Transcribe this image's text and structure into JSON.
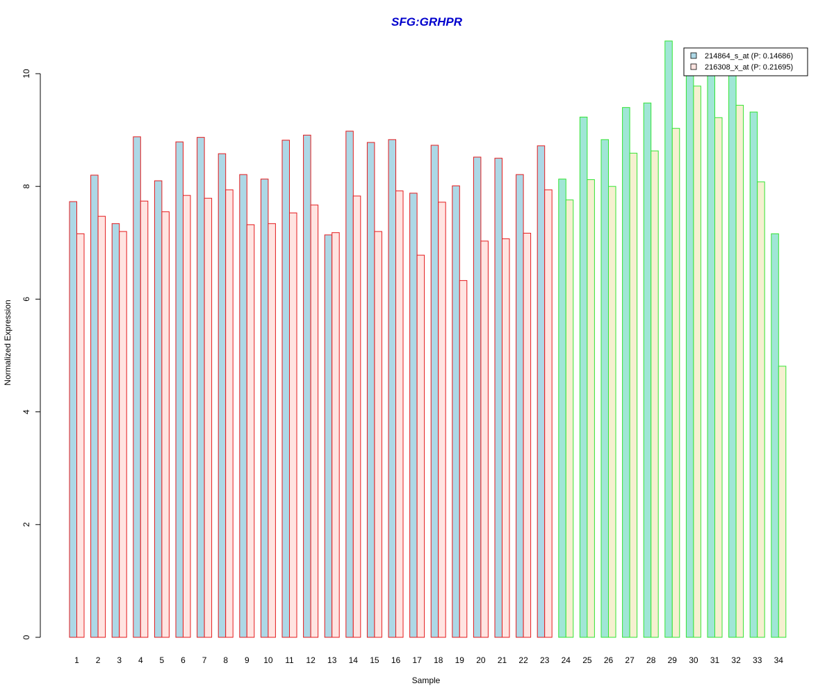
{
  "chart_data": {
    "type": "bar",
    "title": "SFG:GRHPR",
    "xlabel": "Sample",
    "ylabel": "Normalized Expression",
    "ylim": [
      0,
      10.5
    ],
    "yticks": [
      "0",
      "2",
      "4",
      "6",
      "8",
      "10"
    ],
    "categories": [
      "1",
      "2",
      "3",
      "4",
      "5",
      "6",
      "7",
      "8",
      "9",
      "10",
      "11",
      "12",
      "13",
      "14",
      "15",
      "16",
      "17",
      "18",
      "19",
      "20",
      "21",
      "22",
      "23",
      "24",
      "25",
      "26",
      "27",
      "28",
      "29",
      "30",
      "31",
      "32",
      "33",
      "34"
    ],
    "series": [
      {
        "name": "214864_s_at (P: 0.14686)",
        "values": [
          7.73,
          8.2,
          7.34,
          8.88,
          8.1,
          8.79,
          8.87,
          8.58,
          8.21,
          8.13,
          8.82,
          8.91,
          7.14,
          8.98,
          8.78,
          8.83,
          7.88,
          8.73,
          8.01,
          8.52,
          8.5,
          8.21,
          8.72,
          8.13,
          9.23,
          8.83,
          9.4,
          9.48,
          10.58,
          10.0,
          10.0,
          10.0,
          9.32,
          7.16
        ]
      },
      {
        "name": "216308_x_at (P: 0.21695)",
        "values": [
          7.16,
          7.47,
          7.2,
          7.74,
          7.55,
          7.84,
          7.79,
          7.94,
          7.32,
          7.34,
          7.53,
          7.67,
          7.18,
          7.83,
          7.2,
          7.92,
          6.78,
          7.72,
          6.33,
          7.03,
          7.07,
          7.17,
          7.94,
          7.76,
          8.12,
          8.0,
          8.59,
          8.63,
          9.03,
          9.78,
          9.22,
          9.44,
          8.08,
          4.81
        ]
      }
    ],
    "groups": [
      {
        "from": 1,
        "to": 23,
        "border_color": "#e41a1c"
      },
      {
        "from": 24,
        "to": 34,
        "border_color": "#33e433"
      }
    ],
    "fill_colors": {
      "group1": [
        "#add8e6",
        "#ffe4e1"
      ],
      "group2": [
        "#a0e6d6",
        "#f5f0d0"
      ]
    },
    "title_color": "#0000cd",
    "legend_position": "top-right"
  }
}
